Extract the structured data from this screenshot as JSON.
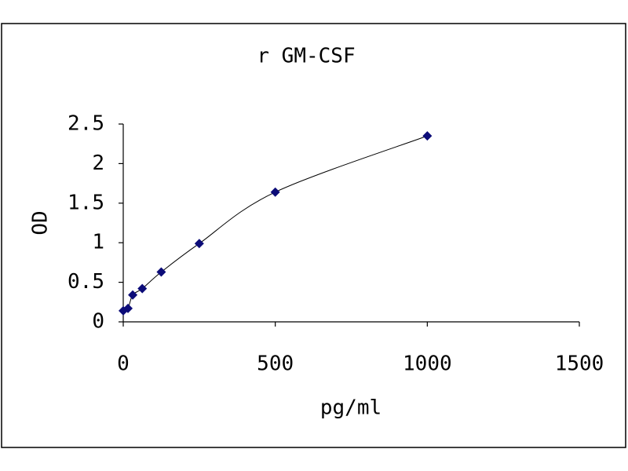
{
  "chart_data": {
    "type": "scatter",
    "title": "r GM-CSF",
    "x_label": "pg/ml",
    "y_label": "OD",
    "series": [
      {
        "name": "OD",
        "color": "#0c0c78",
        "x": [
          0,
          15.6,
          31.25,
          62.5,
          125,
          250,
          500,
          1000
        ],
        "values": [
          0.14,
          0.17,
          0.34,
          0.42,
          0.63,
          0.99,
          1.64,
          2.35
        ]
      }
    ],
    "xlim": [
      0,
      1500
    ],
    "xticks": [
      0,
      500,
      1000,
      1500
    ],
    "ylim": [
      0,
      2.5
    ],
    "yticks": [
      0,
      0.5,
      1,
      1.5,
      2,
      2.5
    ],
    "line": true,
    "smooth": true
  }
}
